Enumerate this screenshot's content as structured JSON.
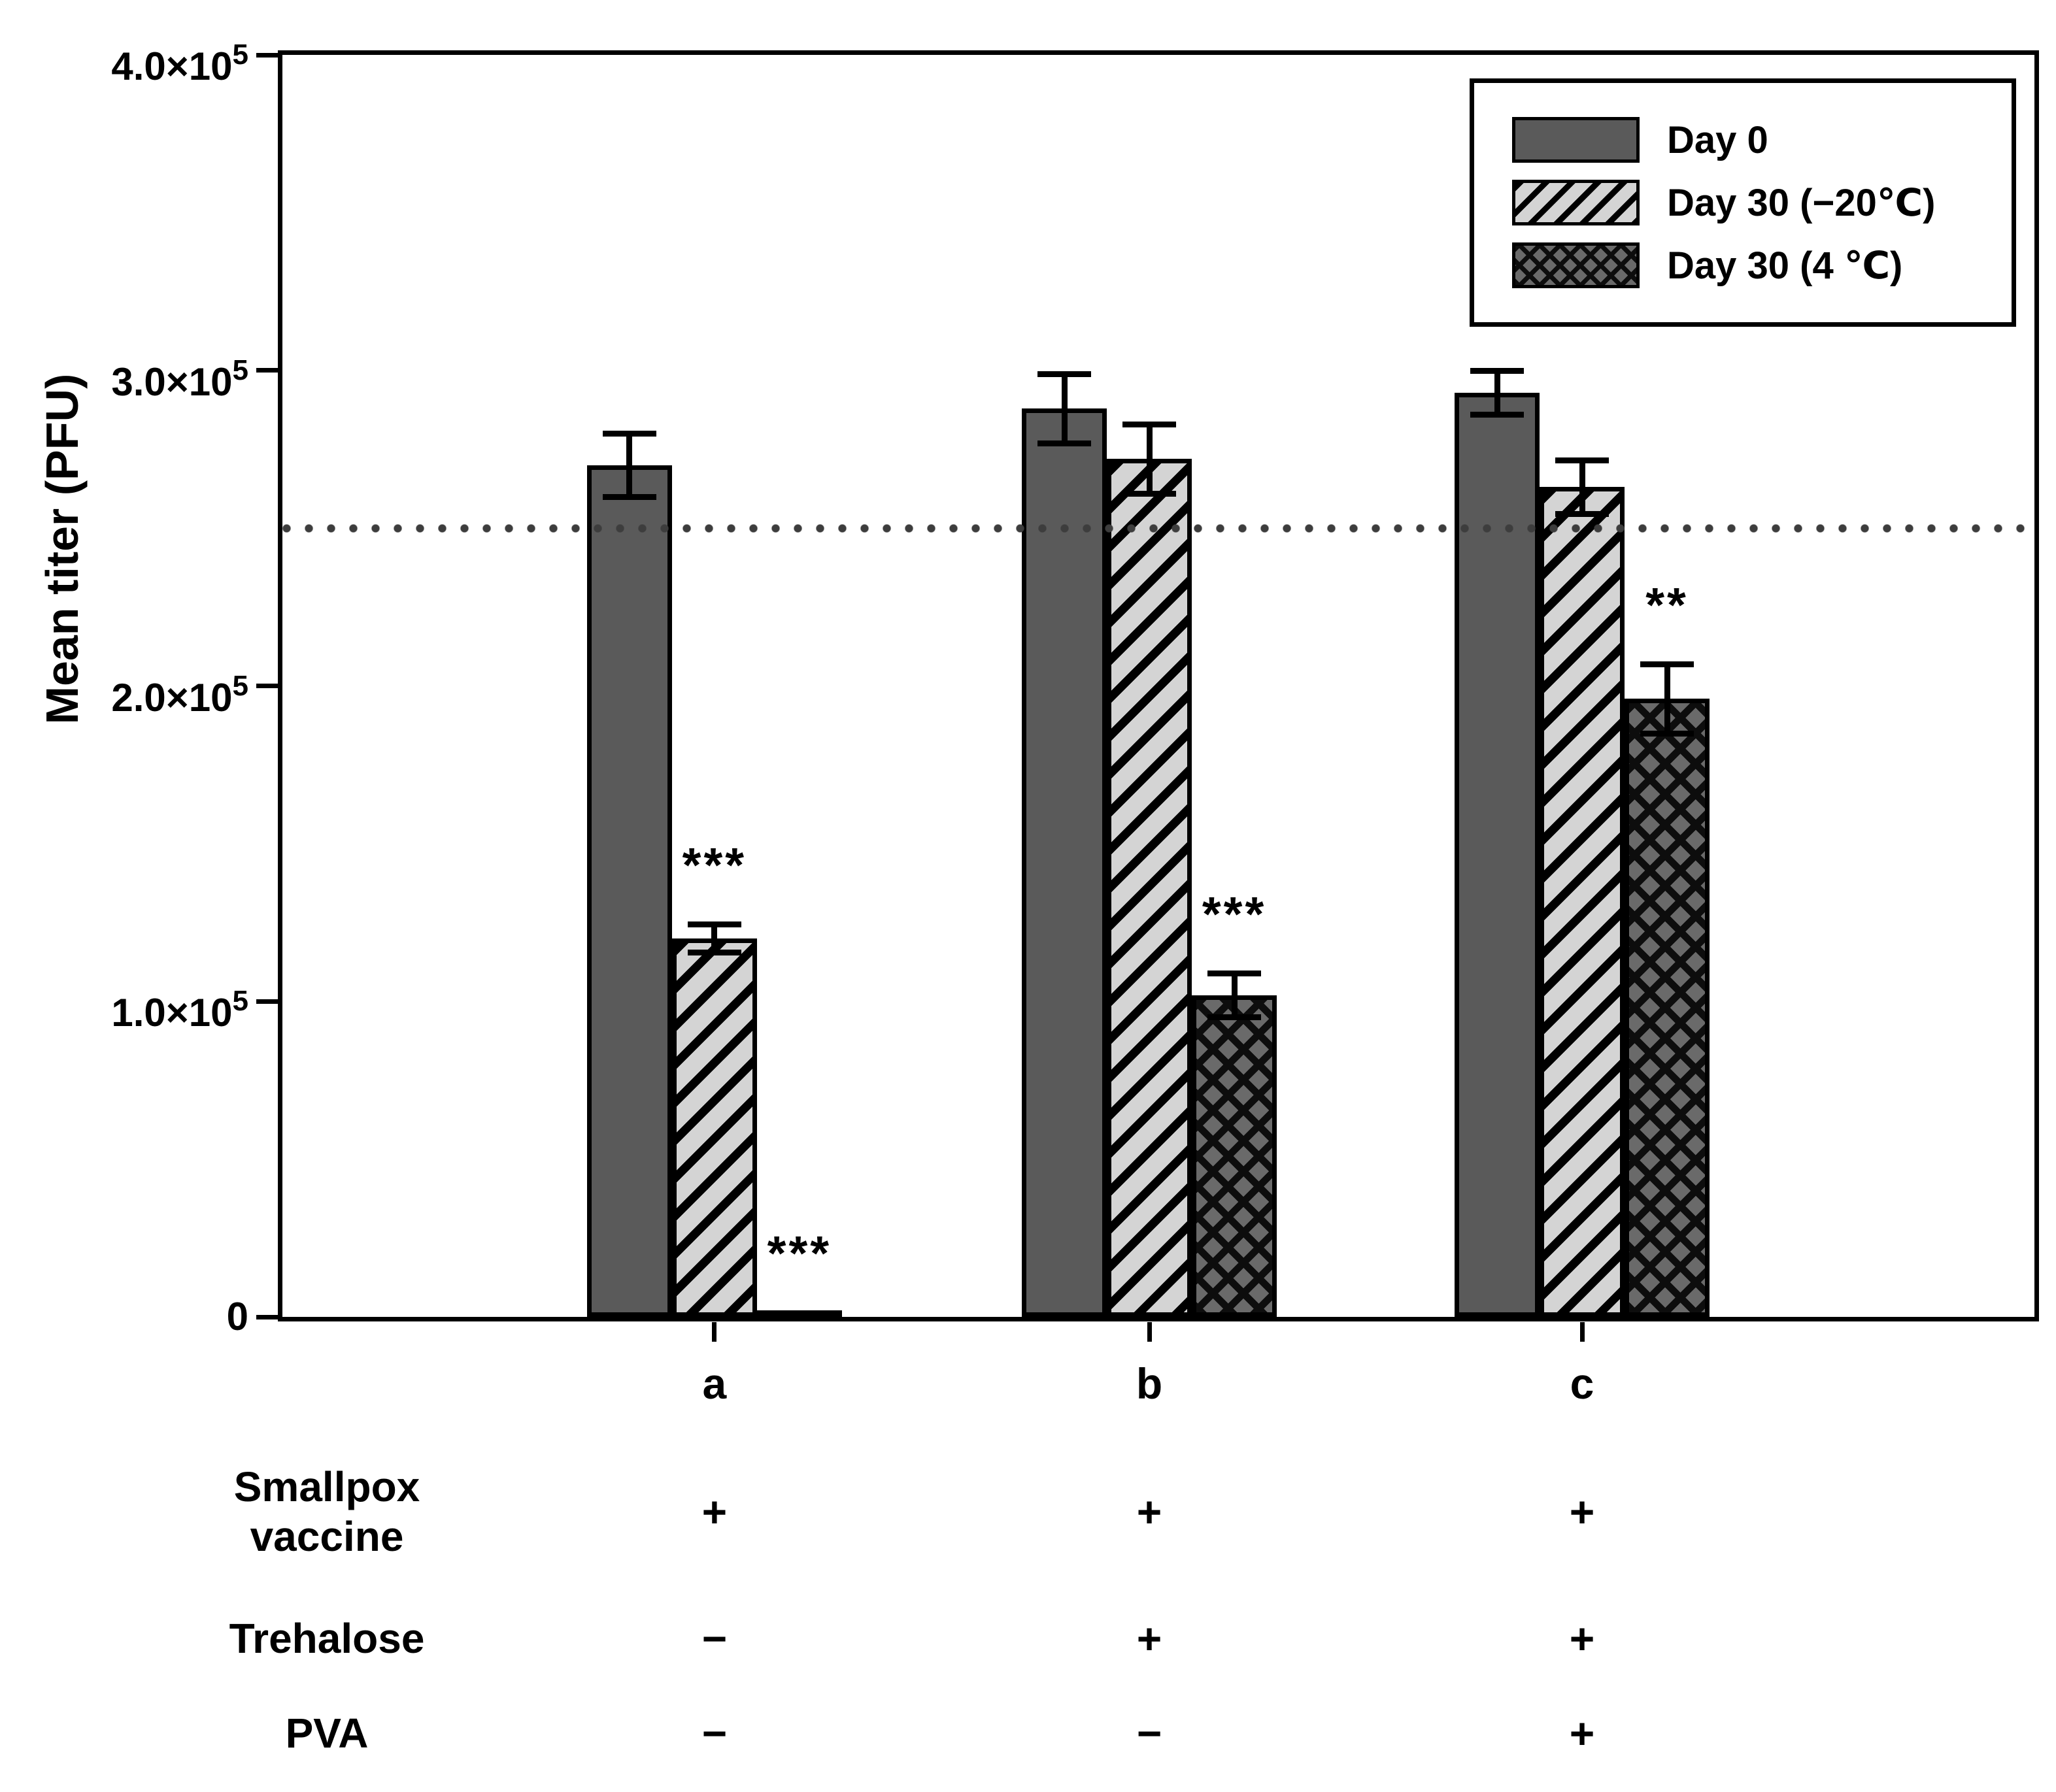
{
  "chart_data": {
    "type": "bar",
    "title": "",
    "xlabel": "",
    "ylabel": "Mean titer (PFU)",
    "ylim": [
      0,
      400000
    ],
    "grid": false,
    "legend_position": "top-right",
    "yticks": [
      {
        "value": 400000,
        "text": "4.0×10",
        "sup": "5"
      },
      {
        "value": 300000,
        "text": "3.0×10",
        "sup": "5"
      },
      {
        "value": 200000,
        "text": "2.0×10",
        "sup": "5"
      },
      {
        "value": 100000,
        "text": "1.0×10",
        "sup": "5"
      },
      {
        "value": 0,
        "text": "0",
        "sup": ""
      }
    ],
    "reference_line": {
      "value": 250000,
      "style": "dotted"
    },
    "categories": [
      "a",
      "b",
      "c"
    ],
    "series": [
      {
        "name": "Day 0",
        "pattern": "solid",
        "values": [
          270000,
          288000,
          293000
        ],
        "errors": [
          10000,
          11000,
          7000
        ],
        "sig": [
          "",
          "",
          ""
        ]
      },
      {
        "name": "Day 30 (−20℃)",
        "pattern": "hatch",
        "values": [
          120000,
          272000,
          263000
        ],
        "errors": [
          4500,
          11000,
          8500
        ],
        "sig": [
          "***",
          "",
          ""
        ]
      },
      {
        "name": "Day 30 (4 ℃)",
        "pattern": "cross",
        "values": [
          1500,
          102000,
          196000
        ],
        "errors": [
          0,
          7000,
          11000
        ],
        "sig": [
          "***",
          "***",
          "**"
        ]
      }
    ]
  },
  "table": {
    "rows": [
      {
        "label_lines": [
          "Smallpox",
          "vaccine"
        ],
        "values": [
          "+",
          "+",
          "+"
        ]
      },
      {
        "label_lines": [
          "Trehalose"
        ],
        "values": [
          "−",
          "+",
          "+"
        ]
      },
      {
        "label_lines": [
          "PVA"
        ],
        "values": [
          "−",
          "−",
          "+"
        ]
      }
    ]
  },
  "colors": {
    "bar_solid": "#5a5a5a",
    "hatch_bg": "#d4d4d4",
    "cross_bg": "#6a6a6a",
    "dotted_line": "#3d3d3d",
    "ink": "#000000"
  }
}
